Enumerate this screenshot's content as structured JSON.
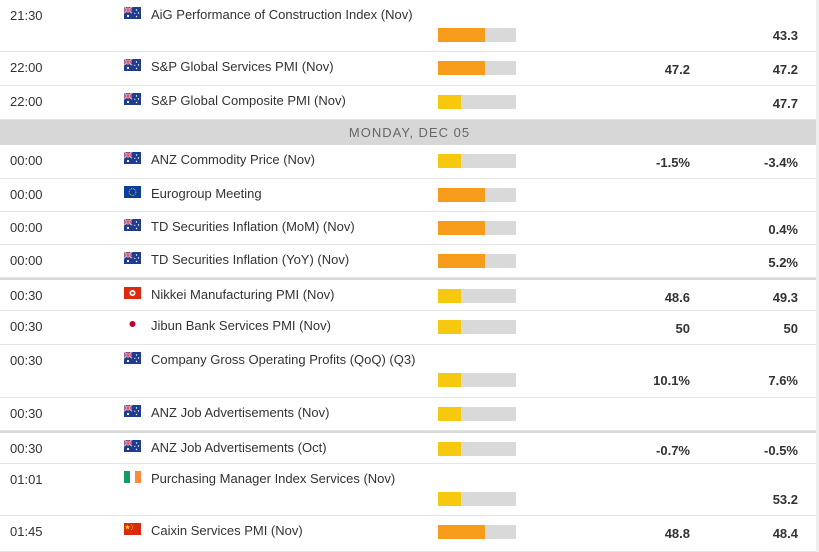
{
  "day_header": "MONDAY, DEC 05",
  "colors": {
    "high": "#f79c1a",
    "low": "#f6c90e",
    "track": "#d9d9d9",
    "header_bg": "#d7d7d7"
  },
  "events": [
    {
      "time": "21:30",
      "flag": "australia",
      "name": "AiG Performance of Construction Index (Nov)",
      "impact": "medium",
      "impact_level": 0.6,
      "consensus": "",
      "previous": "43.3",
      "tall": true
    },
    {
      "time": "22:00",
      "flag": "australia",
      "name": "S&P Global Services PMI (Nov)",
      "impact": "medium",
      "impact_level": 0.6,
      "consensus": "47.2",
      "previous": "47.2",
      "tall": false
    },
    {
      "time": "22:00",
      "flag": "australia",
      "name": "S&P Global Composite PMI (Nov)",
      "impact": "low",
      "impact_level": 0.3,
      "consensus": "",
      "previous": "47.7",
      "tall": false
    },
    {
      "time": "00:00",
      "flag": "australia",
      "name": "ANZ Commodity Price (Nov)",
      "impact": "low",
      "impact_level": 0.3,
      "consensus": "-1.5%",
      "previous": "-3.4%",
      "tall": false
    },
    {
      "time": "00:00",
      "flag": "eu",
      "name": "Eurogroup Meeting",
      "impact": "medium",
      "impact_level": 0.6,
      "consensus": "",
      "previous": "",
      "tall": false
    },
    {
      "time": "00:00",
      "flag": "australia",
      "name": "TD Securities Inflation (MoM) (Nov)",
      "impact": "medium",
      "impact_level": 0.6,
      "consensus": "",
      "previous": "0.4%",
      "tall": false
    },
    {
      "time": "00:00",
      "flag": "australia",
      "name": "TD Securities Inflation (YoY) (Nov)",
      "impact": "medium",
      "impact_level": 0.6,
      "consensus": "",
      "previous": "5.2%",
      "tall": false
    },
    {
      "time": "00:30",
      "flag": "hongkong",
      "name": "Nikkei Manufacturing PMI (Nov)",
      "impact": "low",
      "impact_level": 0.3,
      "consensus": "48.6",
      "previous": "49.3",
      "tall": false
    },
    {
      "time": "00:30",
      "flag": "japan",
      "name": "Jibun Bank Services PMI (Nov)",
      "impact": "low",
      "impact_level": 0.3,
      "consensus": "50",
      "previous": "50",
      "tall": false
    },
    {
      "time": "00:30",
      "flag": "australia",
      "name": "Company Gross Operating Profits (QoQ) (Q3)",
      "impact": "low",
      "impact_level": 0.3,
      "consensus": "10.1%",
      "previous": "7.6%",
      "tall": true
    },
    {
      "time": "00:30",
      "flag": "australia",
      "name": "ANZ Job Advertisements (Nov)",
      "impact": "low",
      "impact_level": 0.3,
      "consensus": "",
      "previous": "",
      "tall": false
    },
    {
      "time": "00:30",
      "flag": "australia",
      "name": "ANZ Job Advertisements (Oct)",
      "impact": "low",
      "impact_level": 0.3,
      "consensus": "-0.7%",
      "previous": "-0.5%",
      "tall": false
    },
    {
      "time": "01:01",
      "flag": "ireland",
      "name": "Purchasing Manager Index Services (Nov)",
      "impact": "low",
      "impact_level": 0.3,
      "consensus": "",
      "previous": "53.2",
      "tall": true
    },
    {
      "time": "01:45",
      "flag": "china",
      "name": "Caixin Services PMI (Nov)",
      "impact": "medium",
      "impact_level": 0.6,
      "consensus": "48.8",
      "previous": "48.4",
      "tall": false
    }
  ]
}
